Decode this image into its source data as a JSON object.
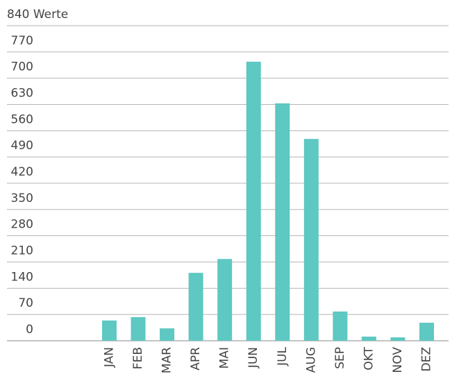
{
  "chart_data": {
    "type": "bar",
    "categories": [
      "JAN",
      "FEB",
      "MAR",
      "APR",
      "MAI",
      "JUN",
      "JUL",
      "AUG",
      "SEP",
      "OKT",
      "NOV",
      "DEZ"
    ],
    "values": [
      54,
      63,
      33,
      181,
      218,
      744,
      633,
      538,
      78,
      11,
      9,
      48
    ],
    "color": "#5ec8c2",
    "ylim": [
      0,
      840
    ],
    "yticks": [
      0,
      70,
      140,
      210,
      280,
      350,
      420,
      490,
      560,
      630,
      700,
      770,
      {
        "value": 840,
        "label": "840 Werte"
      }
    ],
    "grid": true
  }
}
